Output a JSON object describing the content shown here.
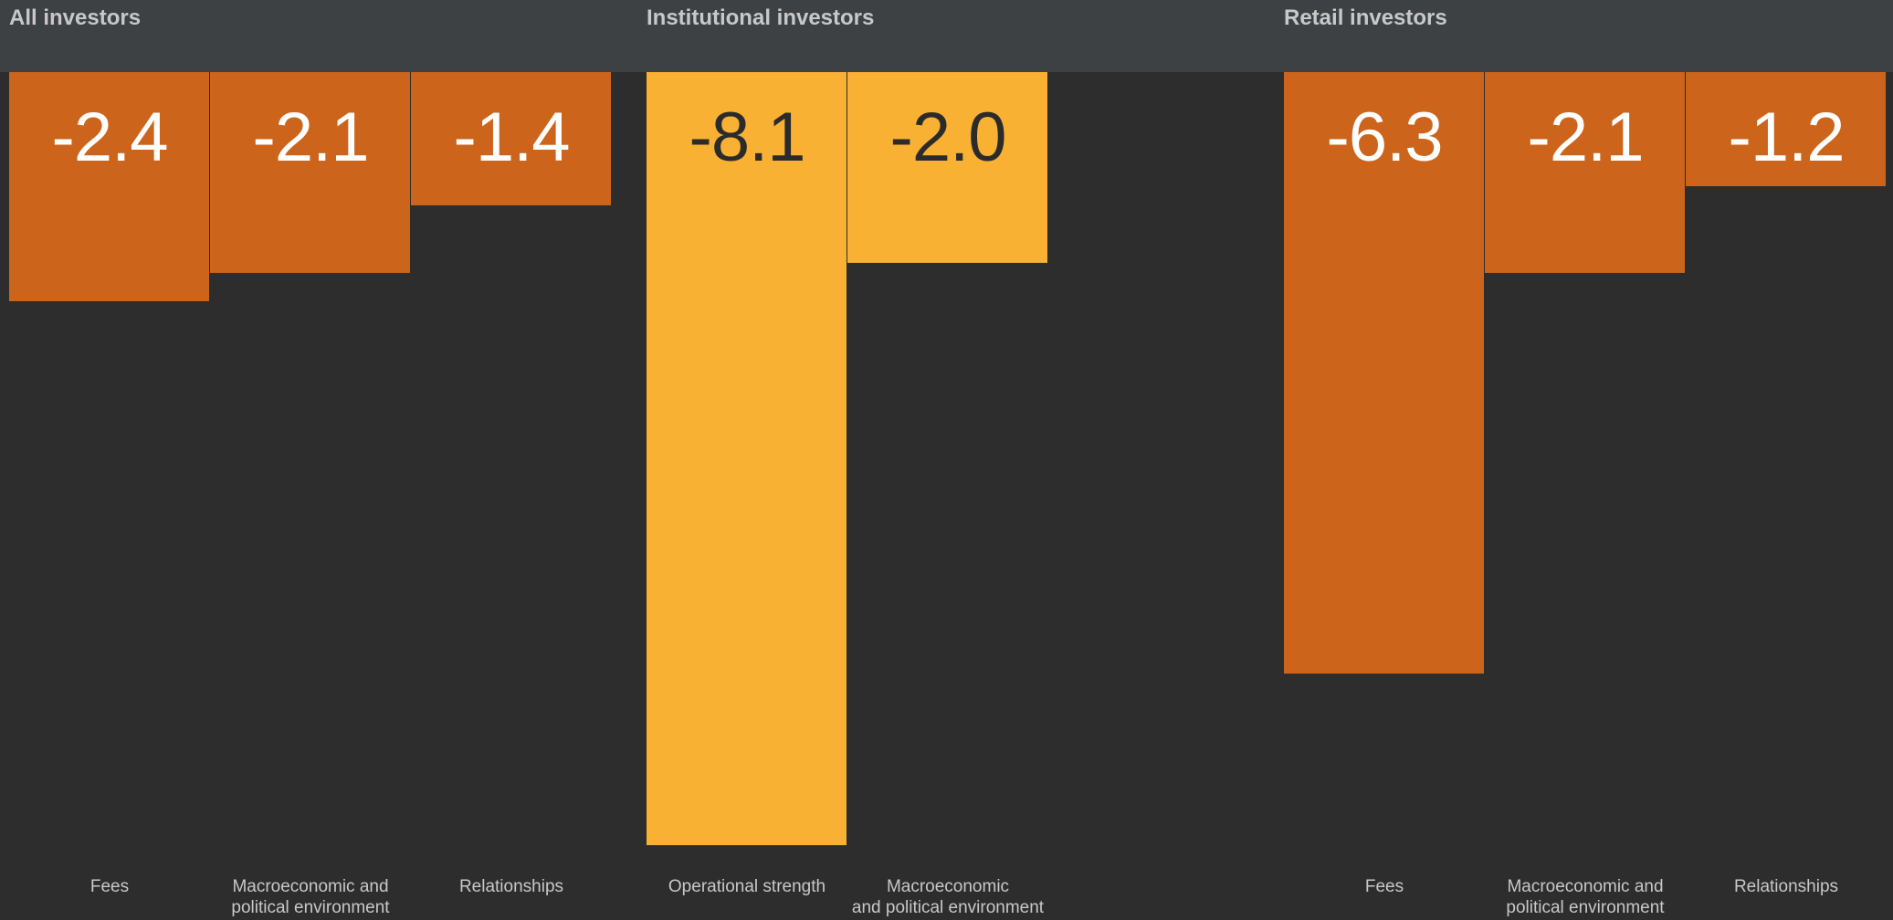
{
  "colors": {
    "background": "#2d2d2d",
    "header_band": "#3e4144",
    "orange": "#cc651b",
    "yellow": "#f9b133",
    "label_text": "#c8c8c8",
    "value_text_light": "#ffffff",
    "value_text_dark": "#2b2b2b"
  },
  "chart_data": [
    {
      "type": "bar",
      "title": "All investors",
      "categories": [
        "Fees",
        "Macroeconomic and\npolitical environment",
        "Relationships"
      ],
      "values": [
        -2.4,
        -2.1,
        -1.4
      ],
      "value_labels": [
        "-2.4",
        "-2.1",
        "-1.4"
      ],
      "color": "#cc651b",
      "value_text_color": "#ffffff",
      "ylim": [
        -8.1,
        0
      ]
    },
    {
      "type": "bar",
      "title": "Institutional investors",
      "categories": [
        "Operational strength",
        "Macroeconomic\nand political environment"
      ],
      "values": [
        -8.1,
        -2.0
      ],
      "value_labels": [
        "-8.1",
        "-2.0"
      ],
      "color": "#f9b133",
      "value_text_color": "#2b2b2b",
      "ylim": [
        -8.1,
        0
      ]
    },
    {
      "type": "bar",
      "title": "Retail investors",
      "categories": [
        "Fees",
        "Macroeconomic and\npolitical environment",
        "Relationships"
      ],
      "values": [
        -6.3,
        -2.1,
        -1.2
      ],
      "value_labels": [
        "-6.3",
        "-2.1",
        "-1.2"
      ],
      "color": "#cc651b",
      "value_text_color": "#ffffff",
      "ylim": [
        -8.1,
        0
      ]
    }
  ]
}
